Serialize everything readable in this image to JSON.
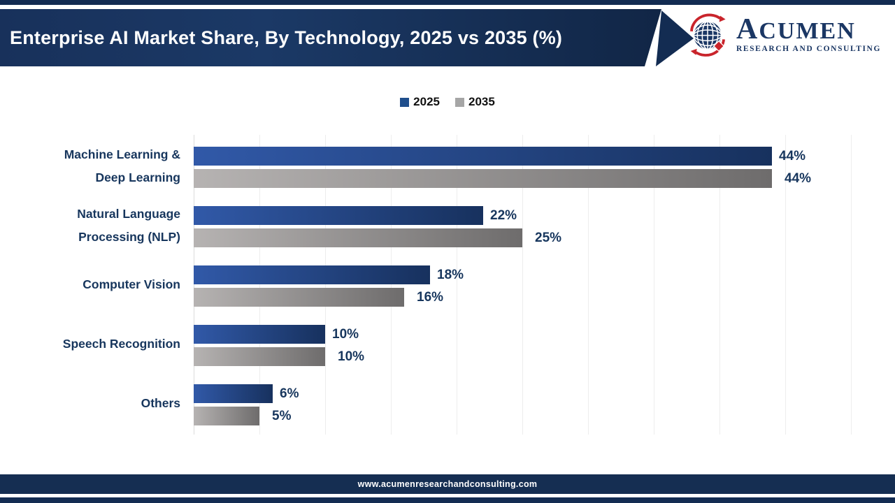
{
  "banner": {
    "title": "Enterprise AI Market Share, By Technology, 2025 vs 2035 (%)"
  },
  "logo": {
    "name": "ACUMEN",
    "subtitle": "RESEARCH AND CONSULTING"
  },
  "legend": {
    "items": [
      {
        "label": "2025"
      },
      {
        "label": "2035"
      }
    ]
  },
  "footer": {
    "url": "www.acumenresearchandconsulting.com"
  },
  "colors": {
    "navy_dark": "#132C52",
    "navy_text": "#17365D",
    "bar_2025_start": "#3159A8",
    "bar_2025_end": "#17315E",
    "bar_2035_start": "#B6B3B2",
    "bar_2035_end": "#6E6C6C",
    "legend_2025": "#1F4E8C",
    "legend_2035": "#A6A6A6",
    "logo_navy": "#1B3764",
    "logo_red": "#C9242B",
    "gridline": "#EDEDED"
  },
  "chart_data": {
    "type": "bar",
    "orientation": "horizontal",
    "title": "Enterprise AI Market Share, By Technology, 2025 vs 2035 (%)",
    "categories": [
      "Machine Learning & Deep Learning",
      "Natural Language Processing (NLP)",
      "Computer Vision",
      "Speech Recognition",
      "Others"
    ],
    "category_lines": [
      [
        "Machine Learning &",
        "Deep Learning"
      ],
      [
        "Natural Language",
        "Processing (NLP)"
      ],
      [
        "Computer Vision"
      ],
      [
        "Speech Recognition"
      ],
      [
        "Others"
      ]
    ],
    "series": [
      {
        "name": "2025",
        "values": [
          44,
          22,
          18,
          10,
          6
        ]
      },
      {
        "name": "2035",
        "values": [
          44,
          25,
          16,
          10,
          5
        ]
      }
    ],
    "value_suffix": "%",
    "xlim": [
      0,
      50
    ],
    "gridline_interval": 5,
    "grid": true,
    "legend_position": "top-center"
  }
}
